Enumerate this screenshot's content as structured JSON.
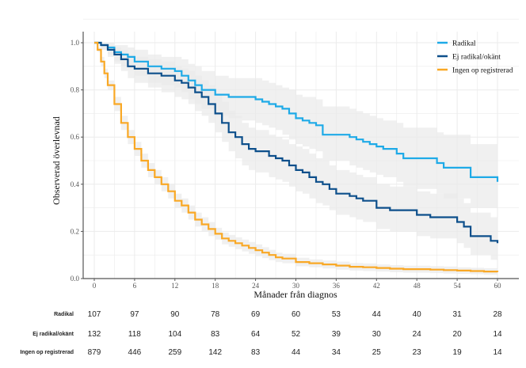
{
  "chart_data": {
    "type": "line",
    "subtype": "kaplan-meier-step",
    "title": "",
    "xlabel": "Månader från diagnos",
    "ylabel": "Observerad överlevnad",
    "xlim": [
      0,
      60
    ],
    "ylim": [
      0,
      1
    ],
    "xticks": [
      0,
      6,
      12,
      18,
      24,
      30,
      36,
      42,
      48,
      54,
      60
    ],
    "xtick_labels": [
      "0",
      "6",
      "12",
      "18",
      "24",
      "30",
      "36",
      "42",
      "48",
      "54",
      "60"
    ],
    "yticks": [
      0,
      0.2,
      0.4,
      0.6,
      0.8,
      1.0
    ],
    "ytick_labels": [
      "0.0",
      "0.2",
      "0.4",
      "0.6",
      "0.8",
      "1.0"
    ],
    "grid": true,
    "legend_position": "top-right",
    "series": [
      {
        "name": "Radikal",
        "color": "#1eaae7",
        "x": [
          0,
          1,
          2,
          3,
          4,
          5,
          6,
          8,
          10,
          12,
          13,
          14,
          15,
          16,
          18,
          20,
          22,
          24,
          25,
          26,
          27,
          28,
          29,
          30,
          31,
          32,
          33,
          34,
          36,
          38,
          39,
          40,
          41,
          42,
          43,
          44,
          45,
          46,
          48,
          50,
          51,
          52,
          54,
          56,
          58,
          60
        ],
        "y": [
          1.0,
          0.99,
          0.98,
          0.96,
          0.95,
          0.94,
          0.92,
          0.9,
          0.89,
          0.88,
          0.86,
          0.84,
          0.82,
          0.8,
          0.78,
          0.77,
          0.77,
          0.76,
          0.75,
          0.74,
          0.73,
          0.72,
          0.7,
          0.68,
          0.67,
          0.66,
          0.65,
          0.61,
          0.61,
          0.6,
          0.59,
          0.58,
          0.57,
          0.56,
          0.55,
          0.55,
          0.53,
          0.51,
          0.51,
          0.51,
          0.49,
          0.47,
          0.47,
          0.43,
          0.43,
          0.41
        ],
        "ci_lower": [
          1.0,
          0.97,
          0.95,
          0.92,
          0.9,
          0.89,
          0.86,
          0.83,
          0.82,
          0.81,
          0.79,
          0.76,
          0.74,
          0.72,
          0.69,
          0.68,
          0.67,
          0.66,
          0.65,
          0.64,
          0.63,
          0.61,
          0.59,
          0.57,
          0.56,
          0.55,
          0.54,
          0.5,
          0.5,
          0.48,
          0.47,
          0.46,
          0.45,
          0.44,
          0.43,
          0.43,
          0.41,
          0.39,
          0.38,
          0.38,
          0.36,
          0.34,
          0.34,
          0.3,
          0.3,
          0.28
        ],
        "ci_upper": [
          1.0,
          1.0,
          1.0,
          0.99,
          0.99,
          0.98,
          0.97,
          0.95,
          0.94,
          0.94,
          0.93,
          0.91,
          0.9,
          0.88,
          0.86,
          0.85,
          0.85,
          0.85,
          0.84,
          0.83,
          0.82,
          0.81,
          0.8,
          0.78,
          0.77,
          0.77,
          0.76,
          0.73,
          0.73,
          0.72,
          0.71,
          0.7,
          0.69,
          0.68,
          0.67,
          0.67,
          0.66,
          0.64,
          0.64,
          0.64,
          0.62,
          0.61,
          0.61,
          0.57,
          0.57,
          0.55
        ]
      },
      {
        "name": "Ej radikal/okänt",
        "color": "#0d4f8b",
        "x": [
          0,
          1,
          2,
          3,
          4,
          5,
          6,
          8,
          10,
          12,
          13,
          14,
          15,
          16,
          17,
          18,
          19,
          20,
          21,
          22,
          23,
          24,
          26,
          27,
          28,
          29,
          30,
          31,
          32,
          33,
          34,
          35,
          36,
          38,
          39,
          40,
          42,
          43,
          44,
          46,
          48,
          50,
          52,
          54,
          55,
          56,
          58,
          59,
          60
        ],
        "y": [
          1.0,
          0.99,
          0.97,
          0.95,
          0.93,
          0.9,
          0.89,
          0.87,
          0.86,
          0.84,
          0.83,
          0.81,
          0.79,
          0.77,
          0.74,
          0.7,
          0.66,
          0.62,
          0.6,
          0.57,
          0.55,
          0.54,
          0.52,
          0.51,
          0.5,
          0.48,
          0.46,
          0.45,
          0.43,
          0.41,
          0.4,
          0.38,
          0.36,
          0.35,
          0.34,
          0.33,
          0.3,
          0.3,
          0.29,
          0.29,
          0.27,
          0.26,
          0.26,
          0.24,
          0.22,
          0.18,
          0.18,
          0.16,
          0.15
        ],
        "ci_lower": [
          1.0,
          0.97,
          0.94,
          0.91,
          0.88,
          0.85,
          0.83,
          0.81,
          0.79,
          0.77,
          0.76,
          0.74,
          0.71,
          0.69,
          0.66,
          0.62,
          0.58,
          0.54,
          0.51,
          0.48,
          0.46,
          0.45,
          0.43,
          0.42,
          0.41,
          0.39,
          0.37,
          0.36,
          0.34,
          0.32,
          0.31,
          0.29,
          0.27,
          0.26,
          0.25,
          0.24,
          0.21,
          0.21,
          0.2,
          0.2,
          0.18,
          0.17,
          0.17,
          0.15,
          0.13,
          0.1,
          0.1,
          0.08,
          0.07
        ],
        "ci_upper": [
          1.0,
          1.0,
          0.99,
          0.98,
          0.97,
          0.95,
          0.94,
          0.93,
          0.92,
          0.9,
          0.89,
          0.88,
          0.86,
          0.84,
          0.82,
          0.78,
          0.75,
          0.71,
          0.69,
          0.66,
          0.64,
          0.63,
          0.61,
          0.6,
          0.59,
          0.57,
          0.56,
          0.55,
          0.53,
          0.51,
          0.5,
          0.48,
          0.46,
          0.45,
          0.44,
          0.43,
          0.4,
          0.4,
          0.39,
          0.39,
          0.37,
          0.36,
          0.36,
          0.34,
          0.32,
          0.28,
          0.28,
          0.26,
          0.25
        ]
      },
      {
        "name": "Ingen op registrerad",
        "color": "#f9a825",
        "x": [
          0,
          0.5,
          1,
          1.5,
          2,
          3,
          4,
          5,
          6,
          7,
          8,
          9,
          10,
          11,
          12,
          13,
          14,
          15,
          16,
          17,
          18,
          19,
          20,
          21,
          22,
          23,
          24,
          25,
          26,
          27,
          28,
          30,
          32,
          34,
          36,
          38,
          40,
          42,
          44,
          46,
          48,
          50,
          52,
          54,
          56,
          58,
          60
        ],
        "y": [
          1.0,
          0.97,
          0.92,
          0.87,
          0.82,
          0.74,
          0.66,
          0.6,
          0.55,
          0.5,
          0.46,
          0.43,
          0.4,
          0.37,
          0.33,
          0.31,
          0.28,
          0.25,
          0.23,
          0.21,
          0.19,
          0.17,
          0.16,
          0.15,
          0.14,
          0.13,
          0.12,
          0.11,
          0.1,
          0.09,
          0.085,
          0.07,
          0.065,
          0.06,
          0.055,
          0.05,
          0.048,
          0.045,
          0.042,
          0.04,
          0.04,
          0.038,
          0.036,
          0.034,
          0.032,
          0.03,
          0.028
        ],
        "ci_lower": [
          1.0,
          0.96,
          0.9,
          0.85,
          0.8,
          0.71,
          0.63,
          0.57,
          0.52,
          0.47,
          0.43,
          0.4,
          0.37,
          0.34,
          0.3,
          0.28,
          0.25,
          0.22,
          0.2,
          0.18,
          0.165,
          0.145,
          0.135,
          0.125,
          0.115,
          0.105,
          0.095,
          0.087,
          0.078,
          0.07,
          0.065,
          0.052,
          0.048,
          0.043,
          0.038,
          0.034,
          0.032,
          0.03,
          0.027,
          0.025,
          0.025,
          0.023,
          0.021,
          0.02,
          0.018,
          0.016,
          0.014
        ],
        "ci_upper": [
          1.0,
          0.98,
          0.94,
          0.89,
          0.84,
          0.77,
          0.69,
          0.63,
          0.58,
          0.53,
          0.49,
          0.46,
          0.43,
          0.4,
          0.36,
          0.34,
          0.31,
          0.28,
          0.26,
          0.24,
          0.215,
          0.195,
          0.185,
          0.175,
          0.165,
          0.155,
          0.145,
          0.133,
          0.122,
          0.11,
          0.105,
          0.088,
          0.082,
          0.077,
          0.072,
          0.066,
          0.064,
          0.06,
          0.057,
          0.055,
          0.055,
          0.053,
          0.051,
          0.048,
          0.046,
          0.044,
          0.042
        ]
      }
    ],
    "risk_table": {
      "times": [
        0,
        6,
        12,
        18,
        24,
        30,
        36,
        42,
        48,
        54,
        60
      ],
      "rows": [
        {
          "label": "Radikal",
          "values": [
            "107",
            "97",
            "90",
            "78",
            "69",
            "60",
            "53",
            "44",
            "40",
            "31",
            "28"
          ]
        },
        {
          "label": "Ej radikal/okänt",
          "values": [
            "132",
            "118",
            "104",
            "83",
            "64",
            "52",
            "39",
            "30",
            "24",
            "20",
            "14"
          ]
        },
        {
          "label": "Ingen op registrerad",
          "values": [
            "879",
            "446",
            "259",
            "142",
            "83",
            "44",
            "34",
            "25",
            "23",
            "19",
            "14"
          ]
        }
      ]
    }
  },
  "colors": {
    "grid": "#ebebeb",
    "ci_fill": "#e9e9e9",
    "axis": "#555555"
  }
}
